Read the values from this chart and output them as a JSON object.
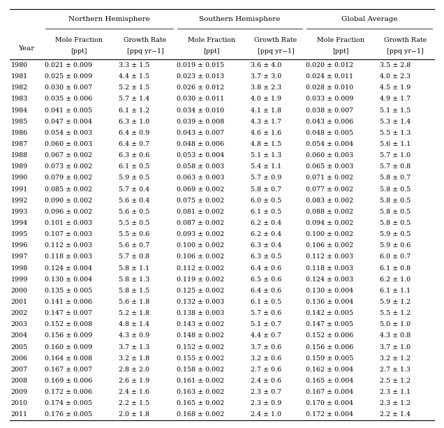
{
  "group_headers": [
    "Northern Hemisphere",
    "Southern Hemisphere",
    "Global Average"
  ],
  "sub_headers": [
    [
      "Mole Fraction\n[ppt]",
      "Growth Rate\n[ppq yr−1]"
    ],
    [
      "Mole Fraction\n[ppt]",
      "Growth Rate\n[ppq yr−1]"
    ],
    [
      "Mole Fraction\n[ppt]",
      "Growth Rate\n[ppq yr−1]"
    ]
  ],
  "year_label": "Year",
  "rows": [
    [
      "1980",
      "0.021 ± 0.009",
      "3.3 ± 1.5",
      "0.019 ± 0.015",
      "3.6 ± 4.0",
      "0.020 ± 0.012",
      "3.5 ± 2.8"
    ],
    [
      "1981",
      "0.025 ± 0.009",
      "4.4 ± 1.5",
      "0.023 ± 0.013",
      "3.7 ± 3.0",
      "0.024 ± 0.011",
      "4.0 ± 2.3"
    ],
    [
      "1982",
      "0.030 ± 0.007",
      "5.2 ± 1.5",
      "0.026 ± 0.012",
      "3.8 ± 2.3",
      "0.028 ± 0.010",
      "4.5 ± 1.9"
    ],
    [
      "1983",
      "0.035 ± 0.006",
      "5.7 ± 1.4",
      "0.030 ± 0.011",
      "4.0 ± 1.9",
      "0.033 ± 0.009",
      "4.9 ± 1.7"
    ],
    [
      "1984",
      "0.041 ± 0.005",
      "6.1 ± 1.2",
      "0.034 ± 0.010",
      "4.1 ± 1.8",
      "0.038 ± 0.007",
      "5.1 ± 1.5"
    ],
    [
      "1985",
      "0.047 ± 0.004",
      "6.3 ± 1.0",
      "0.039 ± 0.008",
      "4.3 ± 1.7",
      "0.043 ± 0.006",
      "5.3 ± 1.4"
    ],
    [
      "1986",
      "0.054 ± 0.003",
      "6.4 ± 0.9",
      "0.043 ± 0.007",
      "4.6 ± 1.6",
      "0.048 ± 0.005",
      "5.5 ± 1.3"
    ],
    [
      "1987",
      "0.060 ± 0.003",
      "6.4 ± 0.7",
      "0.048 ± 0.006",
      "4.8 ± 1.5",
      "0.054 ± 0.004",
      "5.6 ± 1.1"
    ],
    [
      "1988",
      "0.067 ± 0.002",
      "6.3 ± 0.6",
      "0.053 ± 0.004",
      "5.1 ± 1.3",
      "0.060 ± 0.003",
      "5.7 ± 1.0"
    ],
    [
      "1989",
      "0.073 ± 0.002",
      "6.1 ± 0.5",
      "0.058 ± 0.003",
      "5.4 ± 1.1",
      "0.065 ± 0.003",
      "5.7 ± 0.8"
    ],
    [
      "1990",
      "0.079 ± 0.002",
      "5.9 ± 0.5",
      "0.063 ± 0.003",
      "5.7 ± 0.9",
      "0.071 ± 0.002",
      "5.8 ± 0.7"
    ],
    [
      "1991",
      "0.085 ± 0.002",
      "5.7 ± 0.4",
      "0.069 ± 0.002",
      "5.8 ± 0.7",
      "0.077 ± 0.002",
      "5.8 ± 0.5"
    ],
    [
      "1992",
      "0.090 ± 0.002",
      "5.6 ± 0.4",
      "0.075 ± 0.002",
      "6.0 ± 0.5",
      "0.083 ± 0.002",
      "5.8 ± 0.5"
    ],
    [
      "1993",
      "0.096 ± 0.002",
      "5.6 ± 0.5",
      "0.081 ± 0.002",
      "6.1 ± 0.5",
      "0.088 ± 0.002",
      "5.8 ± 0.5"
    ],
    [
      "1994",
      "0.101 ± 0.003",
      "5.5 ± 0.5",
      "0.087 ± 0.002",
      "6.2 ± 0.4",
      "0.094 ± 0.002",
      "5.8 ± 0.5"
    ],
    [
      "1995",
      "0.107 ± 0.003",
      "5.5 ± 0.6",
      "0.093 ± 0.002",
      "6.2 ± 0.4",
      "0.100 ± 0.002",
      "5.9 ± 0.5"
    ],
    [
      "1996",
      "0.112 ± 0.003",
      "5.6 ± 0.7",
      "0.100 ± 0.002",
      "6.3 ± 0.4",
      "0.106 ± 0.002",
      "5.9 ± 0.6"
    ],
    [
      "1997",
      "0.118 ± 0.003",
      "5.7 ± 0.8",
      "0.106 ± 0.002",
      "6.3 ± 0.5",
      "0.112 ± 0.003",
      "6.0 ± 0.7"
    ],
    [
      "1998",
      "0.124 ± 0.004",
      "5.8 ± 1.1",
      "0.112 ± 0.002",
      "6.4 ± 0.6",
      "0.118 ± 0.003",
      "6.1 ± 0.8"
    ],
    [
      "1999",
      "0.130 ± 0.004",
      "5.8 ± 1.3",
      "0.119 ± 0.002",
      "6.5 ± 0.6",
      "0.124 ± 0.003",
      "6.2 ± 1.0"
    ],
    [
      "2000",
      "0.135 ± 0.005",
      "5.8 ± 1.5",
      "0.125 ± 0.002",
      "6.4 ± 0.6",
      "0.130 ± 0.004",
      "6.1 ± 1.1"
    ],
    [
      "2001",
      "0.141 ± 0.006",
      "5.6 ± 1.8",
      "0.132 ± 0.003",
      "6.1 ± 0.5",
      "0.136 ± 0.004",
      "5.9 ± 1.2"
    ],
    [
      "2002",
      "0.147 ± 0.007",
      "5.2 ± 1.8",
      "0.138 ± 0.003",
      "5.7 ± 0.6",
      "0.142 ± 0.005",
      "5.5 ± 1.2"
    ],
    [
      "2003",
      "0.152 ± 0.008",
      "4.8 ± 1.4",
      "0.143 ± 0.002",
      "5.1 ± 0.7",
      "0.147 ± 0.005",
      "5.0 ± 1.0"
    ],
    [
      "2004",
      "0.156 ± 0.009",
      "4.3 ± 0.9",
      "0.148 ± 0.002",
      "4.4 ± 0.7",
      "0.152 ± 0.006",
      "4.3 ± 0.8"
    ],
    [
      "2005",
      "0.160 ± 0.009",
      "3.7 ± 1.3",
      "0.152 ± 0.002",
      "3.7 ± 0.6",
      "0.156 ± 0.006",
      "3.7 ± 1.0"
    ],
    [
      "2006",
      "0.164 ± 0.008",
      "3.2 ± 1.8",
      "0.155 ± 0.002",
      "3.2 ± 0.6",
      "0.159 ± 0.005",
      "3.2 ± 1.2"
    ],
    [
      "2007",
      "0.167 ± 0.007",
      "2.8 ± 2.0",
      "0.158 ± 0.002",
      "2.7 ± 0.6",
      "0.162 ± 0.004",
      "2.7 ± 1.3"
    ],
    [
      "2008",
      "0.169 ± 0.006",
      "2.6 ± 1.9",
      "0.161 ± 0.002",
      "2.4 ± 0.6",
      "0.165 ± 0.004",
      "2.5 ± 1.2"
    ],
    [
      "2009",
      "0.172 ± 0.006",
      "2.4 ± 1.6",
      "0.163 ± 0.002",
      "2.3 ± 0.7",
      "0.167 ± 0.004",
      "2.3 ± 1.1"
    ],
    [
      "2010",
      "0.174 ± 0.005",
      "2.2 ± 1.5",
      "0.165 ± 0.002",
      "2.3 ± 0.9",
      "0.170 ± 0.004",
      "2.3 ± 1.2"
    ],
    [
      "2011",
      "0.176 ± 0.005",
      "2.0 ± 1.8",
      "0.168 ± 0.002",
      "2.4 ± 1.0",
      "0.172 ± 0.004",
      "2.2 ± 1.4"
    ]
  ],
  "bg_color": "#ffffff",
  "text_color": "#000000",
  "line_color": "#000000",
  "font_size": 6.8,
  "header_font_size": 7.5,
  "fig_width": 6.36,
  "fig_height": 6.13,
  "dpi": 100
}
